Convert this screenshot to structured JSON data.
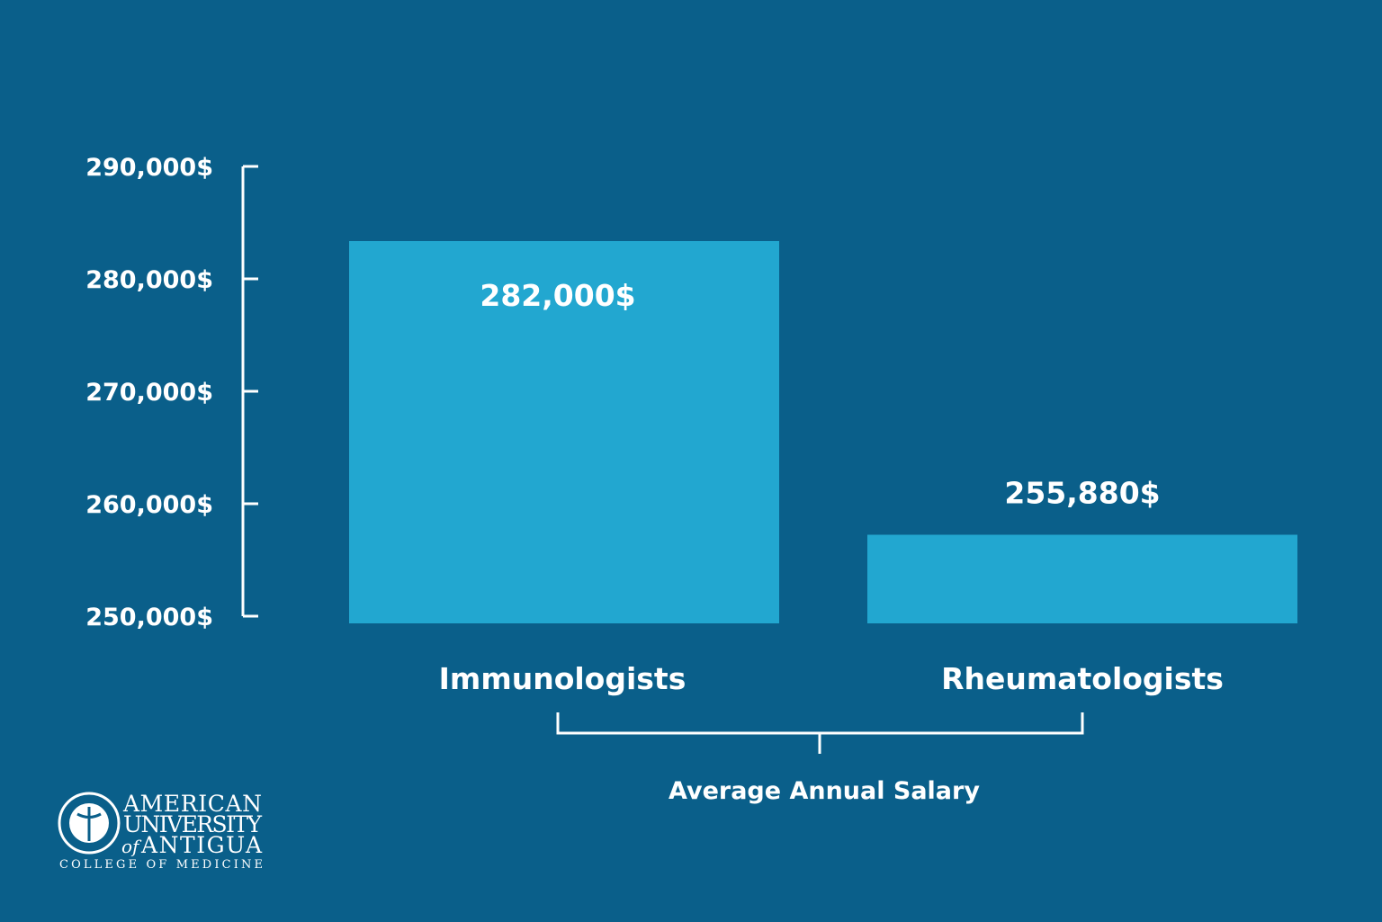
{
  "chart_data": {
    "type": "bar",
    "categories": [
      "Immunologists",
      "Rheumatologists"
    ],
    "values": [
      282000,
      255880
    ],
    "value_labels": [
      "282,000$",
      "255,880$"
    ],
    "title": "",
    "xlabel": "Average Annual Salary",
    "ylabel": "",
    "ylim": [
      250000,
      290000
    ],
    "yticks": [
      290000,
      280000,
      270000,
      260000,
      250000
    ],
    "ytick_labels": [
      "290,000$",
      "280,000$",
      "270,000$",
      "260,000$",
      "250,000$"
    ],
    "grid": false,
    "colors": {
      "background": "#0a5f8a",
      "bar": "#22a7d0",
      "text": "#ffffff"
    }
  },
  "logo": {
    "line1": "AMERICAN",
    "line2": "UNIVERSITY",
    "line3_of": "of",
    "line3": "ANTIGUA",
    "line4": "COLLEGE OF MEDICINE"
  }
}
